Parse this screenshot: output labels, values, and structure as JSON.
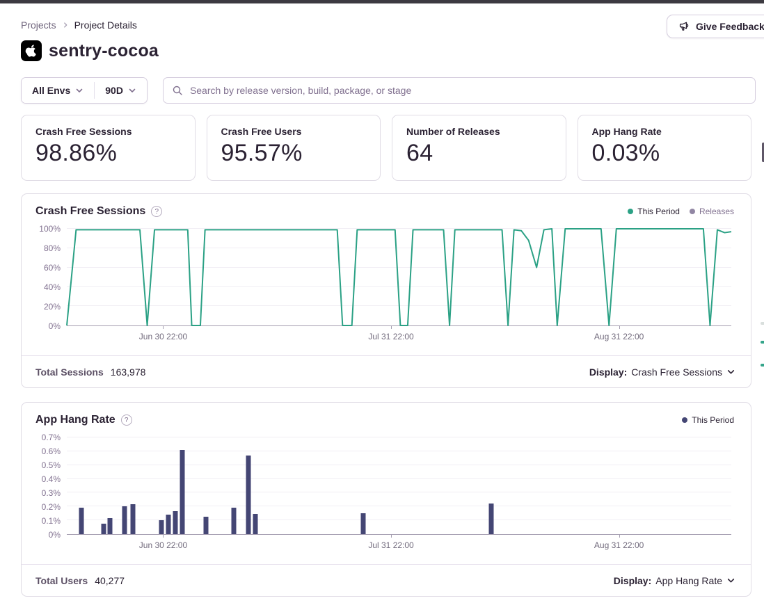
{
  "breadcrumb": {
    "items": [
      "Projects",
      "Project Details"
    ]
  },
  "feedback": {
    "label": "Give Feedback"
  },
  "project": {
    "name": "sentry-cocoa",
    "platform": "apple"
  },
  "filters": {
    "environment": "All Envs",
    "date_range": "90D",
    "search_placeholder": "Search by release version, build, package, or stage"
  },
  "icons": {
    "help": "?"
  },
  "stats": [
    {
      "label": "Crash Free Sessions",
      "value": "98.86%"
    },
    {
      "label": "Crash Free Users",
      "value": "95.57%"
    },
    {
      "label": "Number of Releases",
      "value": "64"
    },
    {
      "label": "App Hang Rate",
      "value": "0.03%"
    }
  ],
  "chart_data": [
    {
      "type": "line",
      "title": "Crash Free Sessions",
      "legend": [
        {
          "label": "This Period",
          "color": "#2ba185",
          "text_color": "#2b2233"
        },
        {
          "label": "Releases",
          "color": "#9186a3",
          "text_color": "#80708f"
        }
      ],
      "color": "#2ba185",
      "ylim": [
        0,
        100
      ],
      "yticks": [
        {
          "label": "0%",
          "value": 0
        },
        {
          "label": "20%",
          "value": 20
        },
        {
          "label": "40%",
          "value": 40
        },
        {
          "label": "60%",
          "value": 60
        },
        {
          "label": "80%",
          "value": 80
        },
        {
          "label": "100%",
          "value": 100
        }
      ],
      "xticks": [
        {
          "label": "Jun 30 22:00",
          "pos": 14.5
        },
        {
          "label": "Jul 31 22:00",
          "pos": 48.8
        },
        {
          "label": "Aug 31 22:00",
          "pos": 83.1
        }
      ],
      "points": [
        [
          0,
          0
        ],
        [
          1.4,
          99
        ],
        [
          11,
          99
        ],
        [
          12.1,
          0
        ],
        [
          13.2,
          99
        ],
        [
          18.2,
          99
        ],
        [
          18.8,
          0
        ],
        [
          20.1,
          0
        ],
        [
          20.8,
          99
        ],
        [
          40.7,
          99
        ],
        [
          41.5,
          0
        ],
        [
          42.9,
          0
        ],
        [
          43.7,
          99
        ],
        [
          49.4,
          99
        ],
        [
          50.2,
          0
        ],
        [
          51.3,
          0
        ],
        [
          52.1,
          99
        ],
        [
          56.7,
          99
        ],
        [
          57.6,
          0
        ],
        [
          58.4,
          99
        ],
        [
          65.5,
          99
        ],
        [
          66.4,
          0
        ],
        [
          67.3,
          99
        ],
        [
          68.4,
          98
        ],
        [
          69.5,
          88
        ],
        [
          70.7,
          60
        ],
        [
          71.8,
          99
        ],
        [
          73,
          100
        ],
        [
          73.8,
          0
        ],
        [
          75,
          100
        ],
        [
          80.4,
          100
        ],
        [
          81.6,
          0
        ],
        [
          82.7,
          100
        ],
        [
          95.8,
          100
        ],
        [
          96.8,
          0
        ],
        [
          97.9,
          99
        ],
        [
          99,
          96
        ],
        [
          100,
          97
        ]
      ],
      "footer": {
        "label": "Total Sessions",
        "value": "163,978",
        "display_label": "Display:",
        "display_value": "Crash Free Sessions"
      }
    },
    {
      "type": "bar",
      "title": "App Hang Rate",
      "legend": [
        {
          "label": "This Period",
          "color": "#444674",
          "text_color": "#2b2233"
        }
      ],
      "color": "#444674",
      "ylim": [
        0,
        0.7
      ],
      "yticks": [
        {
          "label": "0%",
          "value": 0
        },
        {
          "label": "0.1%",
          "value": 0.1
        },
        {
          "label": "0.2%",
          "value": 0.2
        },
        {
          "label": "0.3%",
          "value": 0.3
        },
        {
          "label": "0.4%",
          "value": 0.4
        },
        {
          "label": "0.5%",
          "value": 0.5
        },
        {
          "label": "0.6%",
          "value": 0.6
        },
        {
          "label": "0.7%",
          "value": 0.7
        }
      ],
      "xticks": [
        {
          "label": "Jun 30 22:00",
          "pos": 14.5
        },
        {
          "label": "Jul 31 22:00",
          "pos": 48.8
        },
        {
          "label": "Aug 31 22:00",
          "pos": 83.1
        }
      ],
      "bars": [
        {
          "pos": 2.2,
          "value": 0.19
        },
        {
          "pos": 5.5,
          "value": 0.075
        },
        {
          "pos": 6.5,
          "value": 0.115
        },
        {
          "pos": 8.7,
          "value": 0.2
        },
        {
          "pos": 9.9,
          "value": 0.215
        },
        {
          "pos": 14.2,
          "value": 0.1
        },
        {
          "pos": 15.3,
          "value": 0.14
        },
        {
          "pos": 16.3,
          "value": 0.165
        },
        {
          "pos": 17.4,
          "value": 0.61
        },
        {
          "pos": 20.9,
          "value": 0.125
        },
        {
          "pos": 25.1,
          "value": 0.19
        },
        {
          "pos": 27.3,
          "value": 0.57
        },
        {
          "pos": 28.4,
          "value": 0.145
        },
        {
          "pos": 44.6,
          "value": 0.15
        },
        {
          "pos": 63.9,
          "value": 0.22
        }
      ],
      "footer": {
        "label": "Total Users",
        "value": "40,277",
        "display_label": "Display:",
        "display_value": "App Hang Rate"
      }
    }
  ]
}
